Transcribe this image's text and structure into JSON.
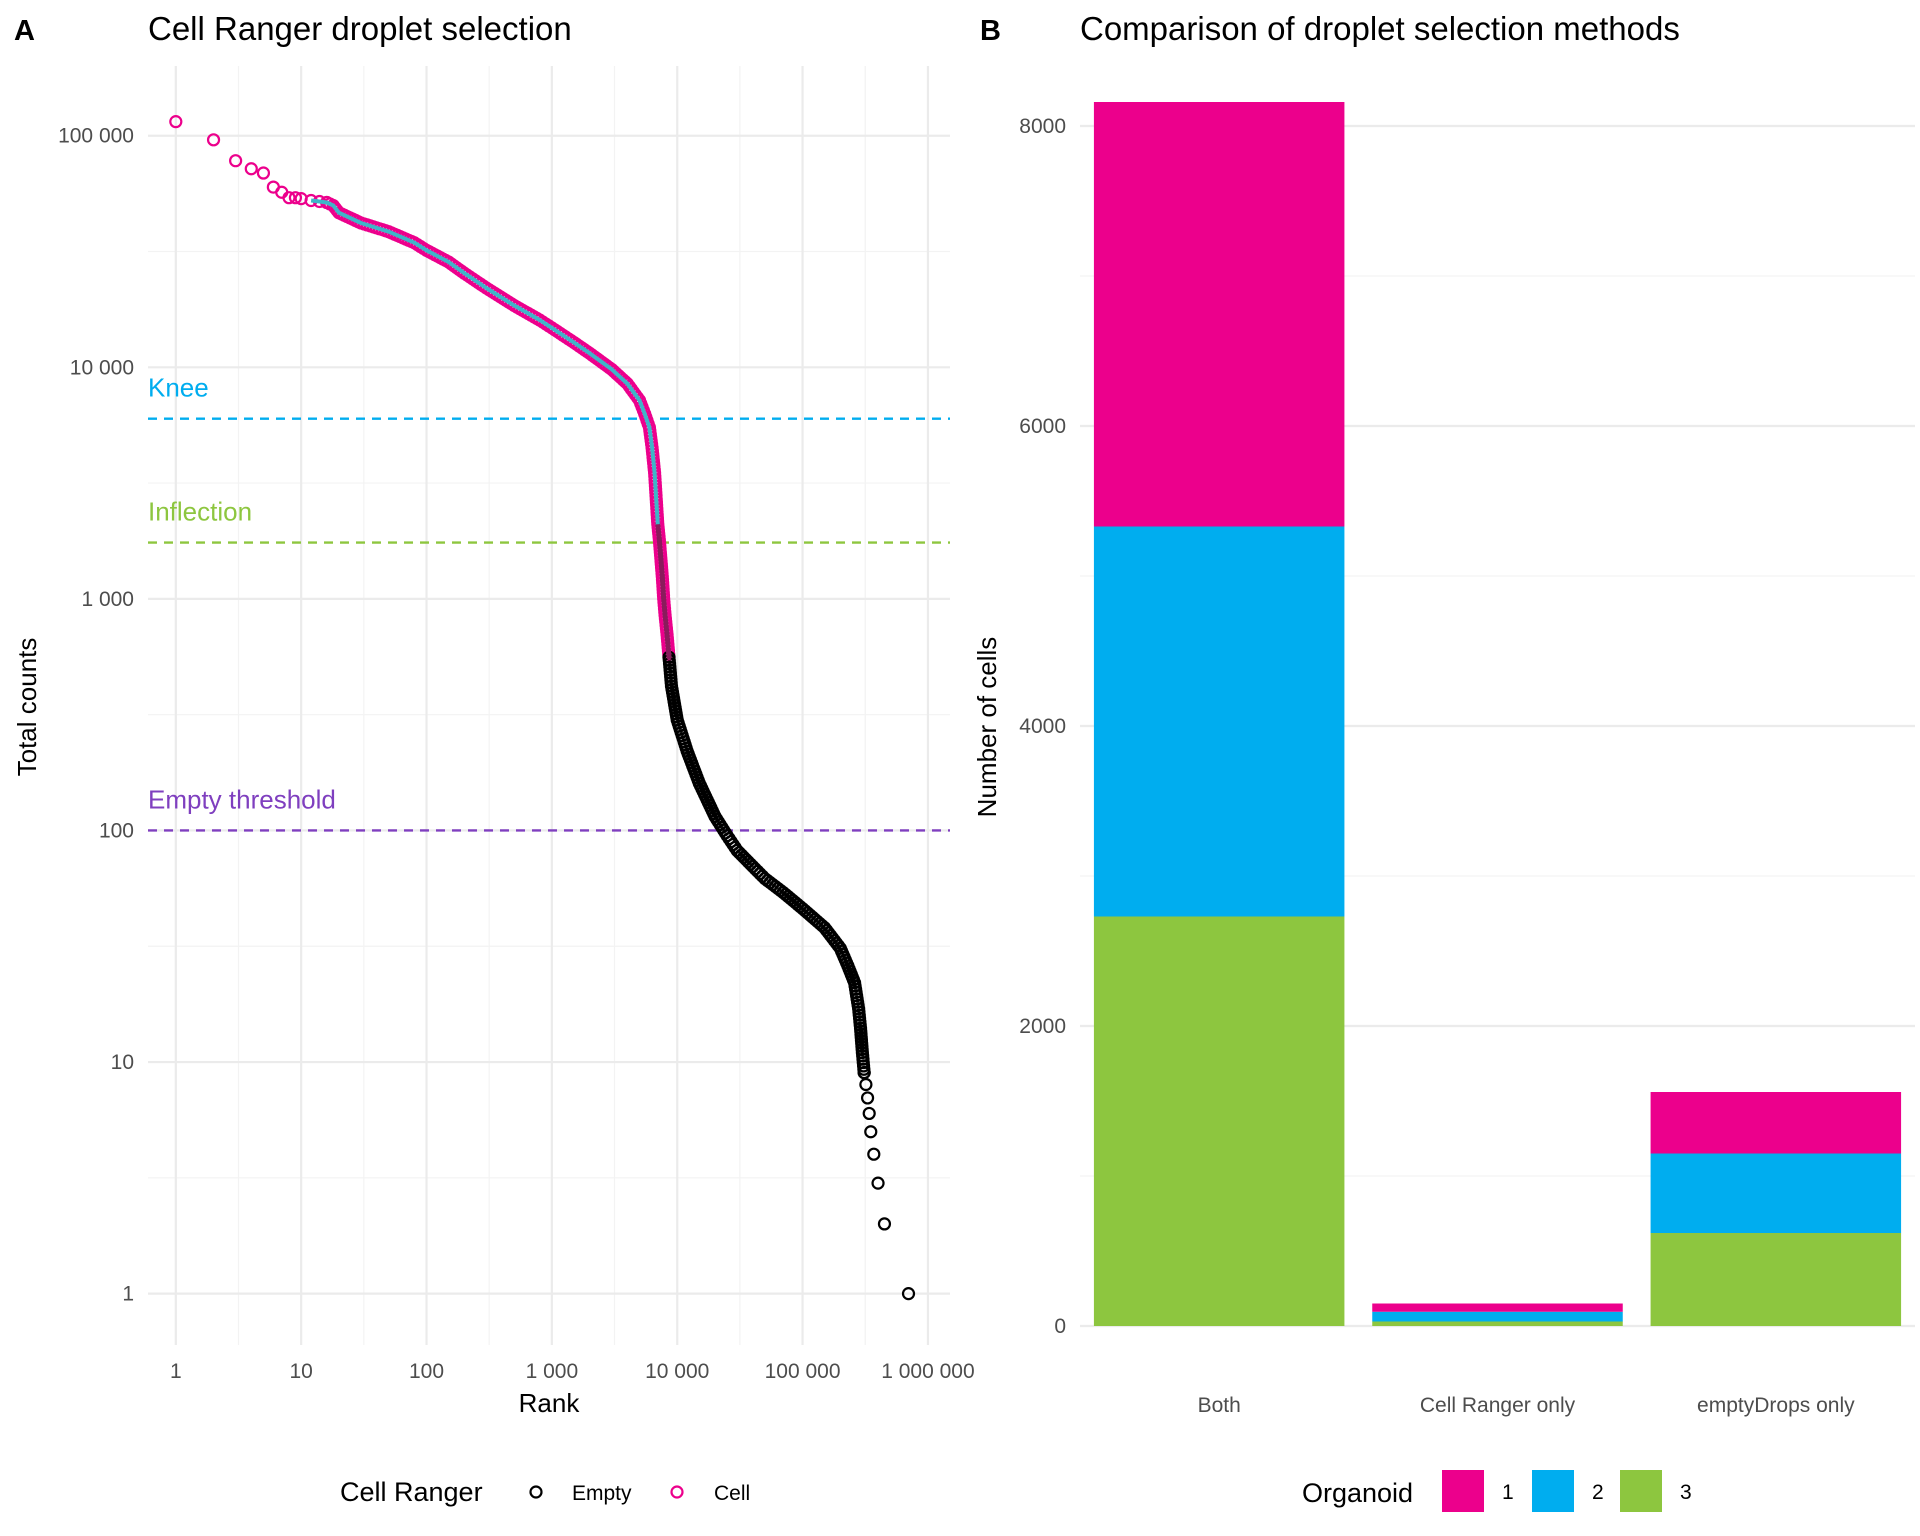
{
  "colors": {
    "empty": "#000000",
    "cell": "#EC008C",
    "knee": "#00ADEF",
    "inflection": "#8DC63F",
    "empty_threshold": "#7F3FBF",
    "organoid_1": "#EC008C",
    "organoid_2": "#00ADEF",
    "organoid_3": "#8DC63F",
    "grid": "#EBEBEB",
    "curve_line": "#3FB5C8"
  },
  "chart_data": [
    {
      "panel": "A",
      "type": "scatter",
      "title": "Cell Ranger droplet selection",
      "xlabel": "Rank",
      "ylabel": "Total counts",
      "x_scale": "log10",
      "y_scale": "log10",
      "xlim": [
        0.6,
        1500000
      ],
      "ylim": [
        0.6,
        200000
      ],
      "x_ticks": [
        1,
        10,
        100,
        1000,
        10000,
        100000,
        1000000
      ],
      "x_tick_labels": [
        "1",
        "10",
        "100",
        "1 000",
        "10 000",
        "100 000",
        "1 000 000"
      ],
      "y_ticks": [
        1,
        10,
        100,
        1000,
        10000,
        100000
      ],
      "y_tick_labels": [
        "1",
        "10",
        "100",
        "1 000",
        "10 000",
        "100 000"
      ],
      "grid": true,
      "reference_lines": [
        {
          "label": "Knee",
          "y": 6000,
          "color": "#00ADEF"
        },
        {
          "label": "Inflection",
          "y": 1750,
          "color": "#8DC63F"
        },
        {
          "label": "Empty threshold",
          "y": 100,
          "color": "#7F3FBF"
        }
      ],
      "legend": {
        "title": "Cell Ranger",
        "position": "bottom",
        "entries": [
          "Empty",
          "Cell"
        ]
      },
      "series": [
        {
          "name": "Cell",
          "points": [
            [
              1,
              115000
            ],
            [
              2,
              96000
            ],
            [
              3,
              78000
            ],
            [
              4,
              72000
            ],
            [
              5,
              69000
            ],
            [
              6,
              60000
            ],
            [
              7,
              57000
            ],
            [
              8,
              54000
            ],
            [
              9,
              54000
            ],
            [
              10,
              53500
            ],
            [
              12,
              52500
            ],
            [
              14,
              52000
            ],
            [
              16,
              51500
            ],
            [
              18,
              50000
            ],
            [
              20,
              46500
            ],
            [
              30,
              42000
            ],
            [
              50,
              38500
            ],
            [
              80,
              34500
            ],
            [
              100,
              32000
            ],
            [
              150,
              28500
            ],
            [
              200,
              25500
            ],
            [
              300,
              22000
            ],
            [
              500,
              18500
            ],
            [
              800,
              16000
            ],
            [
              1000,
              14800
            ],
            [
              1500,
              12800
            ],
            [
              2000,
              11500
            ],
            [
              3000,
              9800
            ],
            [
              4000,
              8500
            ],
            [
              5000,
              7200
            ],
            [
              5500,
              6300
            ],
            [
              6000,
              5500
            ],
            [
              6300,
              4500
            ],
            [
              6600,
              3500
            ],
            [
              6800,
              2700
            ],
            [
              7000,
              2100
            ],
            [
              7200,
              1800
            ],
            [
              7400,
              1500
            ],
            [
              7600,
              1250
            ],
            [
              7800,
              1000
            ],
            [
              8000,
              850
            ],
            [
              8300,
              700
            ],
            [
              8600,
              560
            ]
          ]
        },
        {
          "name": "Empty",
          "points": [
            [
              8600,
              560
            ],
            [
              9000,
              420
            ],
            [
              10000,
              300
            ],
            [
              12000,
              220
            ],
            [
              15000,
              160
            ],
            [
              20000,
              115
            ],
            [
              25000,
              95
            ],
            [
              30000,
              82
            ],
            [
              40000,
              70
            ],
            [
              50000,
              62
            ],
            [
              70000,
              54
            ],
            [
              100000,
              46
            ],
            [
              150000,
              38
            ],
            [
              200000,
              31
            ],
            [
              230000,
              26
            ],
            [
              260000,
              22
            ],
            [
              280000,
              17
            ],
            [
              290000,
              14
            ],
            [
              300000,
              11
            ],
            [
              310000,
              9
            ],
            [
              320000,
              8
            ],
            [
              330000,
              7
            ],
            [
              340000,
              6
            ],
            [
              350000,
              5
            ],
            [
              370000,
              4
            ],
            [
              400000,
              3
            ],
            [
              450000,
              2
            ],
            [
              700000,
              1
            ]
          ]
        }
      ]
    },
    {
      "panel": "B",
      "type": "bar",
      "stacked": true,
      "title": "Comparison of droplet selection methods",
      "xlabel": "",
      "ylabel": "Number of cells",
      "categories": [
        "Both",
        "Cell Ranger only",
        "emptyDrops only"
      ],
      "ylim": [
        0,
        8400
      ],
      "y_ticks": [
        0,
        2000,
        4000,
        6000,
        8000
      ],
      "grid": true,
      "legend": {
        "title": "Organoid",
        "position": "bottom",
        "entries": [
          "1",
          "2",
          "3"
        ]
      },
      "series": [
        {
          "name": "3",
          "values": [
            2730,
            30,
            620
          ]
        },
        {
          "name": "2",
          "values": [
            2600,
            65,
            530
          ]
        },
        {
          "name": "1",
          "values": [
            2830,
            55,
            410
          ]
        }
      ]
    }
  ]
}
